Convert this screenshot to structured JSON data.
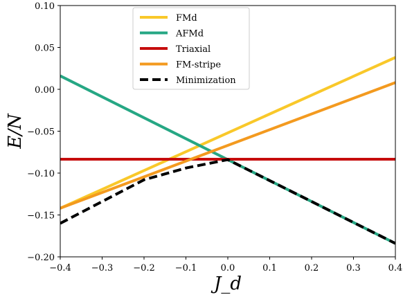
{
  "chart_data": {
    "type": "line",
    "title": "",
    "xlabel": "J_d",
    "ylabel": "E/N",
    "xlim": [
      -0.4,
      0.4
    ],
    "ylim": [
      -0.2,
      0.1
    ],
    "xticks": [
      -0.4,
      -0.3,
      -0.2,
      -0.1,
      0.0,
      0.1,
      0.2,
      0.3,
      0.4
    ],
    "xtick_labels": [
      "−0.4",
      "−0.3",
      "−0.2",
      "−0.1",
      "0.0",
      "0.1",
      "0.2",
      "0.3",
      "0.4"
    ],
    "yticks": [
      -0.2,
      -0.15,
      -0.1,
      -0.05,
      0.0,
      0.05,
      0.1
    ],
    "ytick_labels": [
      "−0.20",
      "−0.15",
      "−0.10",
      "−0.05",
      "0.00",
      "0.05",
      "0.10"
    ],
    "grid": false,
    "legend_position": "top-center",
    "series": [
      {
        "name": "FMd",
        "color": "#f9c82a",
        "style": "solid",
        "x": [
          -0.4,
          0.4
        ],
        "y": [
          -0.142,
          0.038
        ]
      },
      {
        "name": "AFMd",
        "color": "#26a784",
        "style": "solid",
        "x": [
          -0.4,
          0.4
        ],
        "y": [
          0.016,
          -0.184
        ]
      },
      {
        "name": "Triaxial",
        "color": "#c60d0d",
        "style": "solid",
        "x": [
          -0.4,
          0.4
        ],
        "y": [
          -0.0835,
          -0.0835
        ]
      },
      {
        "name": "FM-stripe",
        "color": "#f39a1f",
        "style": "solid",
        "x": [
          -0.4,
          0.4
        ],
        "y": [
          -0.142,
          0.008
        ]
      },
      {
        "name": "Minimization",
        "color": "#000000",
        "style": "dashed",
        "x": [
          -0.4,
          -0.3,
          -0.2,
          -0.1,
          0.0,
          0.1,
          0.2,
          0.3,
          0.4
        ],
        "y": [
          -0.16,
          -0.134,
          -0.108,
          -0.094,
          -0.084,
          -0.109,
          -0.134,
          -0.159,
          -0.184
        ]
      }
    ]
  }
}
